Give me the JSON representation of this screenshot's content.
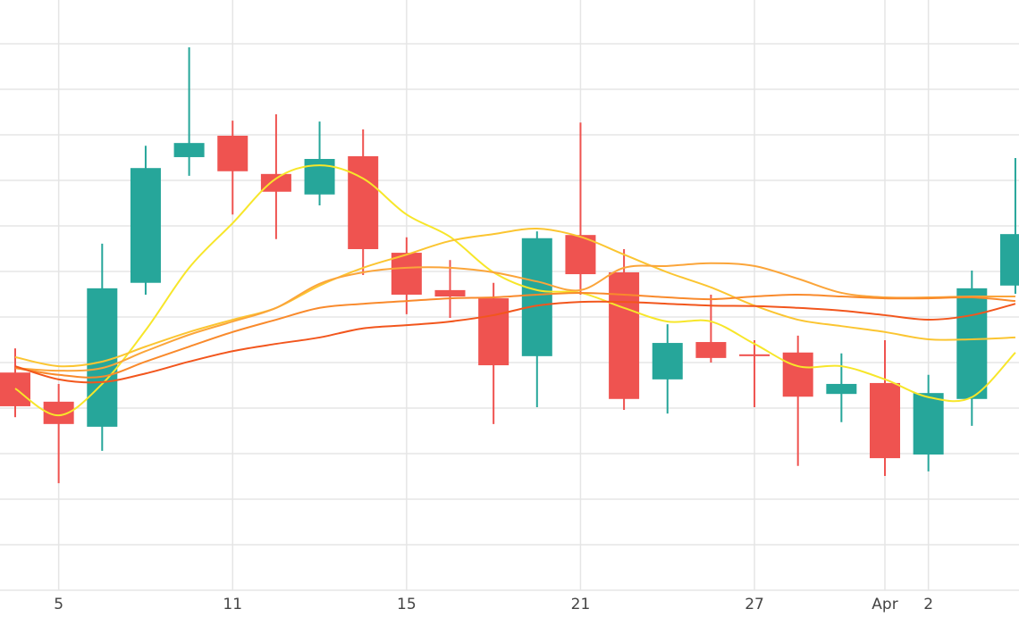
{
  "chart_data": {
    "type": "candlestick",
    "categories": [
      null,
      "5",
      null,
      null,
      null,
      "11",
      null,
      null,
      null,
      "15",
      null,
      null,
      null,
      "21",
      null,
      null,
      null,
      "27",
      null,
      null,
      "Apr",
      "2",
      null,
      null
    ],
    "open": [
      147.8,
      141.4,
      135.9,
      167.5,
      195.1,
      199.8,
      191.4,
      186.9,
      195.3,
      174.1,
      165.9,
      164.1,
      151.4,
      178.0,
      169.8,
      146.3,
      154.5,
      151.8,
      152.2,
      143.1,
      145.5,
      129.8,
      142.0,
      166.9
    ],
    "high": [
      153.1,
      145.3,
      176.1,
      197.6,
      219.2,
      203.1,
      204.5,
      202.9,
      201.2,
      177.5,
      172.5,
      167.5,
      178.8,
      202.7,
      174.9,
      158.4,
      164.9,
      154.9,
      155.9,
      152.0,
      154.9,
      147.3,
      170.2,
      194.9
    ],
    "low": [
      138.0,
      123.5,
      130.6,
      164.9,
      191.0,
      182.5,
      177.1,
      184.5,
      169.2,
      160.6,
      159.8,
      136.5,
      140.2,
      164.9,
      139.6,
      138.8,
      150.0,
      140.2,
      127.3,
      136.9,
      125.1,
      126.1,
      136.1,
      165.1
    ],
    "close": [
      140.4,
      136.5,
      166.3,
      192.7,
      198.2,
      192.0,
      187.5,
      194.7,
      174.9,
      164.9,
      164.5,
      149.4,
      177.3,
      169.4,
      142.0,
      154.3,
      151.0,
      151.4,
      142.5,
      145.3,
      129.0,
      143.3,
      166.3,
      178.2
    ],
    "up_color": "#26a69a",
    "down_color": "#ef5350",
    "overlays": [
      {
        "type": "line",
        "color": "#f7e62a",
        "values": [
          144.3,
          138.4,
          145.3,
          157.1,
          170.8,
          180.6,
          190.4,
          193.3,
          190.4,
          182.5,
          177.6,
          169.8,
          165.9,
          165.3,
          162.0,
          159.0,
          159.0,
          154.1,
          149.2,
          149.2,
          146.3,
          142.4,
          142.4,
          152.2
        ]
      },
      {
        "type": "line",
        "color": "#fbc531",
        "values": [
          151.2,
          149.2,
          150.2,
          153.5,
          156.7,
          159.4,
          162.0,
          166.9,
          170.8,
          173.7,
          176.7,
          178.2,
          179.4,
          177.6,
          173.7,
          169.8,
          166.5,
          162.5,
          159.4,
          158.0,
          156.7,
          155.1,
          155.1,
          155.5
        ]
      },
      {
        "type": "line",
        "color": "#fba53a",
        "values": [
          148.8,
          148.2,
          148.8,
          152.5,
          156.1,
          159.0,
          162.0,
          167.3,
          169.8,
          170.8,
          170.8,
          169.8,
          167.8,
          165.9,
          170.8,
          171.2,
          171.8,
          171.2,
          168.4,
          165.3,
          164.3,
          164.3,
          164.5,
          164.5
        ]
      },
      {
        "type": "line",
        "color": "#f98a2c",
        "values": [
          148.8,
          147.3,
          146.9,
          150.2,
          153.5,
          156.7,
          159.4,
          162.0,
          162.9,
          163.5,
          164.1,
          164.3,
          164.9,
          165.3,
          164.9,
          164.3,
          163.9,
          164.5,
          164.9,
          164.5,
          164.1,
          164.1,
          164.3,
          163.5
        ]
      },
      {
        "type": "line",
        "color": "#f2561d",
        "values": [
          149.2,
          146.3,
          145.7,
          147.6,
          150.2,
          152.5,
          154.1,
          155.5,
          157.5,
          158.2,
          159.0,
          160.4,
          162.5,
          163.3,
          163.3,
          162.9,
          162.5,
          162.4,
          162.0,
          161.4,
          160.4,
          159.4,
          160.4,
          162.9
        ]
      }
    ],
    "ylim": [
      100,
      229.6
    ],
    "gridlines": [
      100,
      110,
      120,
      130,
      140,
      150,
      160,
      170,
      180,
      190,
      200,
      210,
      220
    ],
    "grid": true
  }
}
